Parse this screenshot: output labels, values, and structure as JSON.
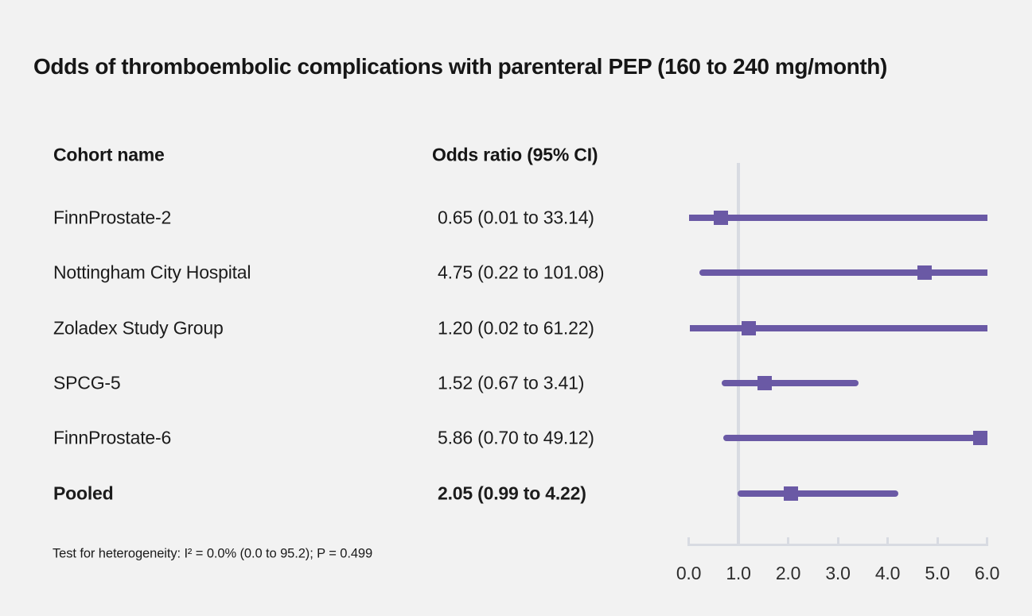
{
  "chart_data": {
    "type": "forest",
    "title": "Odds of thromboembolic complications with parenteral PEP (160 to 240 mg/month)",
    "col_headers": [
      "Cohort name",
      "Odds ratio (95% CI)"
    ],
    "studies": [
      {
        "name": "FinnProstate-2",
        "or_label": "0.65 (0.01 to 33.14)",
        "or": 0.65,
        "ci_lower": 0.01,
        "ci_upper": 33.14,
        "bold": false
      },
      {
        "name": "Nottingham City Hospital",
        "or_label": "4.75 (0.22 to 101.08)",
        "or": 4.75,
        "ci_lower": 0.22,
        "ci_upper": 101.08,
        "bold": false
      },
      {
        "name": "Zoladex Study Group",
        "or_label": "1.20 (0.02 to 61.22)",
        "or": 1.2,
        "ci_lower": 0.02,
        "ci_upper": 61.22,
        "bold": false
      },
      {
        "name": "SPCG-5",
        "or_label": "1.52 (0.67 to 3.41)",
        "or": 1.52,
        "ci_lower": 0.67,
        "ci_upper": 3.41,
        "bold": false
      },
      {
        "name": "FinnProstate-6",
        "or_label": "5.86 (0.70 to 49.12)",
        "or": 5.86,
        "ci_lower": 0.7,
        "ci_upper": 49.12,
        "bold": false
      },
      {
        "name": "Pooled",
        "or_label": "2.05 (0.99 to 4.22)",
        "or": 2.05,
        "ci_lower": 0.99,
        "ci_upper": 4.22,
        "bold": true
      }
    ],
    "x_axis": {
      "range": [
        0,
        6
      ],
      "tick_values": [
        0,
        1,
        2,
        3,
        4,
        5,
        6
      ],
      "tick_labels": [
        "0.0",
        "1.0",
        "2.0",
        "3.0",
        "4.0",
        "5.0",
        "6.0"
      ],
      "reference_line": 1.0
    },
    "footnote": "Test for heterogeneity: I² = 0.0% (0.0 to 95.2); P = 0.499",
    "colors": {
      "marker": "#6a59a5",
      "axis": "#d8dbe2",
      "background": "#f2f2f2",
      "text": "#1c1c1c"
    }
  }
}
